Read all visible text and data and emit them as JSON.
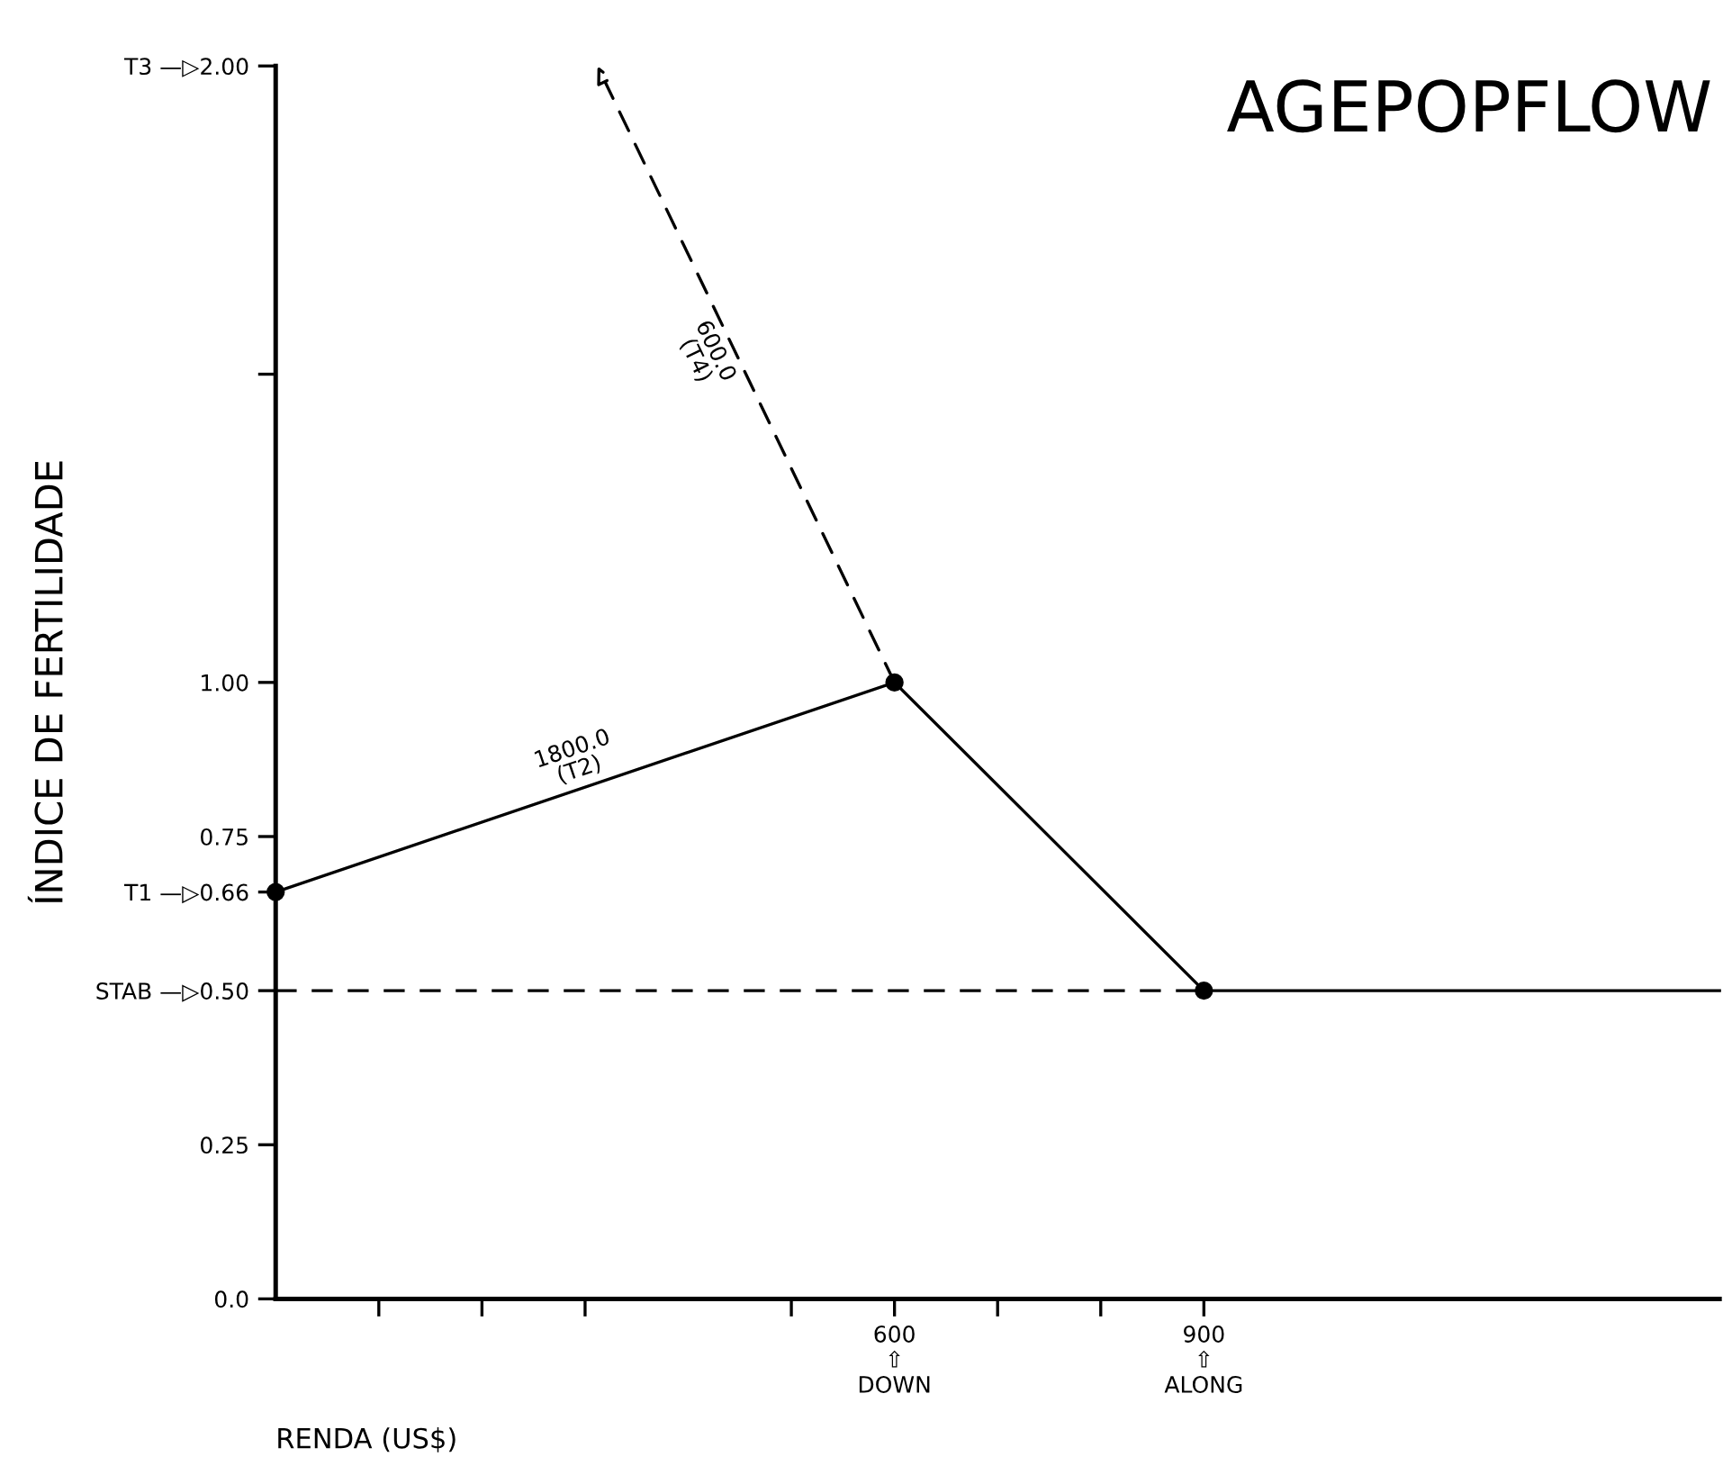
{
  "chart_data": {
    "type": "line",
    "title": "AGEPOPFLOW",
    "xlabel": "RENDA (US$)",
    "ylabel": "ÍNDICE DE FERTILIDADE",
    "series": [
      {
        "color": "#000000",
        "x": [
          0,
          600,
          900,
          1400
        ],
        "values": [
          0.66,
          1.0,
          0.5,
          0.5
        ],
        "line_style": "solid",
        "marker": "none"
      },
      {
        "color": "#000000",
        "x": [
          0,
          900
        ],
        "values": [
          0.5,
          0.5
        ],
        "line_style": "dashed",
        "marker": "none"
      },
      {
        "color": "#000000",
        "x": [
          600,
          312
        ],
        "values": [
          1.0,
          2.0
        ],
        "line_style": "dashed",
        "marker": "none"
      },
      {
        "type": "scatter",
        "color": "#000000",
        "x": [
          0,
          600,
          900
        ],
        "values": [
          0.66,
          1.0,
          0.5
        ],
        "marker": "circle"
      }
    ],
    "annotations": [
      "1800.0\n(T2)",
      "600.0\n(T4)"
    ],
    "xlim": [
      0,
      1400
    ],
    "xticks": [
      {
        "value": 100,
        "label": null
      },
      {
        "value": 200,
        "label": null
      },
      {
        "value": 300,
        "label": null
      },
      {
        "value": 500,
        "label": null
      },
      {
        "value": 600,
        "label": "600\n⇧\nDOWN"
      },
      {
        "value": 700,
        "label": null
      },
      {
        "value": 800,
        "label": null
      },
      {
        "value": 900,
        "label": "900\n⇧\nALONG"
      }
    ],
    "ylim": [
      0,
      2.0
    ],
    "yticks": [
      {
        "value": 0,
        "label": "0.0"
      },
      0.25,
      {
        "value": 0.5,
        "label": "STAB —▷0.50"
      },
      {
        "value": 0.66,
        "label": "T1 —▷0.66"
      },
      0.75,
      {
        "value": 1.0,
        "label": "1.00"
      },
      {
        "value": 1.5,
        "label": null
      },
      {
        "value": 2.0,
        "label": "T3 —▷2.00"
      }
    ],
    "grid": false,
    "legend": false
  }
}
